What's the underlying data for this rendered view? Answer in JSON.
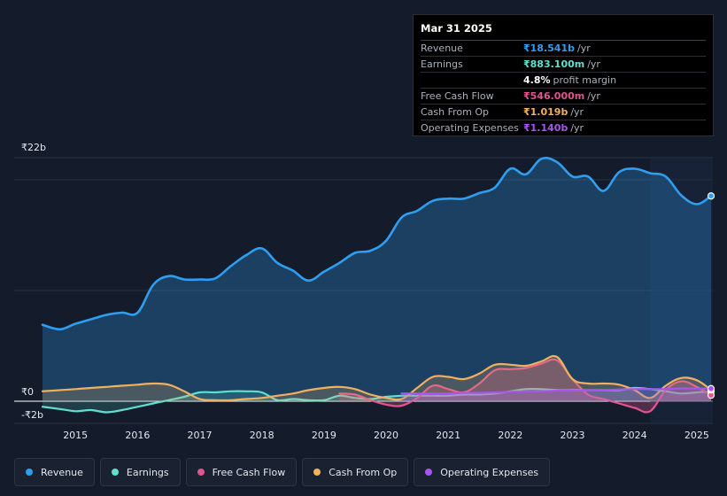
{
  "chart_data": {
    "type": "area",
    "title": "",
    "xlabel": "",
    "ylabel": "",
    "y_unit": "₹ billions",
    "ylim": [
      -2,
      22
    ],
    "y_tick_labels": [
      {
        "value": 22,
        "label": "₹22b"
      },
      {
        "value": 0,
        "label": "₹0"
      },
      {
        "value": -2,
        "label": "-₹2b"
      }
    ],
    "x_ticks": [
      2015,
      2016,
      2017,
      2018,
      2019,
      2020,
      2021,
      2022,
      2023,
      2024,
      2025
    ],
    "x_range": [
      2014.47,
      2025.23
    ],
    "forecast_start": 2024.25,
    "series": [
      {
        "name": "Revenue",
        "color": "#2f9ef0",
        "x": [
          2014.47,
          2014.75,
          2015.0,
          2015.25,
          2015.5,
          2015.75,
          2016.0,
          2016.25,
          2016.5,
          2016.75,
          2017.0,
          2017.25,
          2017.5,
          2017.75,
          2018.0,
          2018.25,
          2018.5,
          2018.75,
          2019.0,
          2019.25,
          2019.5,
          2019.75,
          2020.0,
          2020.25,
          2020.5,
          2020.75,
          2021.0,
          2021.25,
          2021.5,
          2021.75,
          2022.0,
          2022.25,
          2022.5,
          2022.75,
          2023.0,
          2023.25,
          2023.5,
          2023.75,
          2024.0,
          2024.25,
          2024.5,
          2024.75,
          2025.0,
          2025.23
        ],
        "values": [
          6.9,
          6.5,
          7.0,
          7.4,
          7.8,
          8.0,
          8.0,
          10.5,
          11.3,
          11.0,
          11.0,
          11.1,
          12.2,
          13.2,
          13.8,
          12.5,
          11.8,
          10.9,
          11.7,
          12.5,
          13.4,
          13.6,
          14.5,
          16.6,
          17.2,
          18.1,
          18.3,
          18.3,
          18.8,
          19.3,
          21.0,
          20.5,
          21.9,
          21.6,
          20.3,
          20.3,
          19.0,
          20.7,
          21.0,
          20.6,
          20.3,
          18.6,
          17.8,
          18.541
        ]
      },
      {
        "name": "Earnings",
        "color": "#5fe0cf",
        "x": [
          2014.47,
          2014.75,
          2015.0,
          2015.25,
          2015.5,
          2015.75,
          2016.0,
          2016.25,
          2016.5,
          2016.75,
          2017.0,
          2017.25,
          2017.5,
          2017.75,
          2018.0,
          2018.25,
          2018.5,
          2018.75,
          2019.0,
          2019.25,
          2019.5,
          2019.75,
          2020.0,
          2020.25,
          2020.5,
          2020.75,
          2021.0,
          2021.25,
          2021.5,
          2021.75,
          2022.0,
          2022.25,
          2022.5,
          2022.75,
          2023.0,
          2023.25,
          2023.5,
          2023.75,
          2024.0,
          2024.25,
          2024.5,
          2024.75,
          2025.0,
          2025.23
        ],
        "values": [
          -0.5,
          -0.7,
          -0.9,
          -0.8,
          -1.0,
          -0.8,
          -0.5,
          -0.2,
          0.1,
          0.4,
          0.8,
          0.8,
          0.9,
          0.9,
          0.8,
          0.1,
          0.2,
          0.1,
          0.1,
          0.5,
          0.3,
          0.2,
          0.4,
          0.5,
          0.5,
          0.5,
          0.5,
          0.6,
          0.6,
          0.7,
          0.9,
          1.1,
          1.1,
          1.0,
          1.0,
          1.0,
          1.0,
          1.0,
          1.2,
          1.1,
          0.9,
          0.7,
          0.8,
          0.883
        ]
      },
      {
        "name": "Free Cash Flow",
        "color": "#e05590",
        "x": [
          2019.25,
          2019.5,
          2019.75,
          2020.0,
          2020.25,
          2020.5,
          2020.75,
          2021.0,
          2021.25,
          2021.5,
          2021.75,
          2022.0,
          2022.25,
          2022.5,
          2022.75,
          2023.0,
          2023.25,
          2023.5,
          2023.75,
          2024.0,
          2024.25,
          2024.5,
          2024.75,
          2025.0,
          2025.23
        ],
        "values": [
          0.7,
          0.6,
          0.1,
          -0.3,
          -0.4,
          0.3,
          1.4,
          1.1,
          0.8,
          1.6,
          2.8,
          2.9,
          3.0,
          3.4,
          3.7,
          2.0,
          0.6,
          0.2,
          -0.2,
          -0.6,
          -0.9,
          1.0,
          1.8,
          1.3,
          0.546
        ]
      },
      {
        "name": "Cash From Op",
        "color": "#f0b060",
        "x": [
          2014.47,
          2014.75,
          2015.0,
          2015.25,
          2015.5,
          2015.75,
          2016.0,
          2016.25,
          2016.5,
          2016.75,
          2017.0,
          2017.25,
          2017.5,
          2017.75,
          2018.0,
          2018.25,
          2018.5,
          2018.75,
          2019.0,
          2019.25,
          2019.5,
          2019.75,
          2020.0,
          2020.25,
          2020.5,
          2020.75,
          2021.0,
          2021.25,
          2021.5,
          2021.75,
          2022.0,
          2022.25,
          2022.5,
          2022.75,
          2023.0,
          2023.25,
          2023.5,
          2023.75,
          2024.0,
          2024.25,
          2024.5,
          2024.75,
          2025.0,
          2025.23
        ],
        "values": [
          0.9,
          1.0,
          1.1,
          1.2,
          1.3,
          1.4,
          1.5,
          1.6,
          1.5,
          0.9,
          0.2,
          0.1,
          0.1,
          0.2,
          0.3,
          0.5,
          0.7,
          1.0,
          1.2,
          1.3,
          1.1,
          0.6,
          0.3,
          0.2,
          1.2,
          2.2,
          2.2,
          2.0,
          2.5,
          3.3,
          3.3,
          3.2,
          3.6,
          4.0,
          2.0,
          1.6,
          1.6,
          1.5,
          1.0,
          0.3,
          1.4,
          2.1,
          1.9,
          1.019
        ]
      },
      {
        "name": "Operating Expenses",
        "color": "#a855f0",
        "x": [
          2020.25,
          2020.5,
          2020.75,
          2021.0,
          2021.25,
          2021.5,
          2021.75,
          2022.0,
          2022.25,
          2022.5,
          2022.75,
          2023.0,
          2023.25,
          2023.5,
          2023.75,
          2024.0,
          2024.25,
          2024.5,
          2024.75,
          2025.0,
          2025.23
        ],
        "values": [
          0.7,
          0.7,
          0.7,
          0.7,
          0.75,
          0.75,
          0.8,
          0.85,
          0.9,
          0.9,
          0.95,
          0.95,
          1.0,
          1.0,
          1.05,
          1.1,
          1.1,
          1.1,
          1.15,
          1.15,
          1.14
        ]
      }
    ]
  },
  "tooltip": {
    "date": "Mar 31 2025",
    "rows": [
      {
        "label": "Revenue",
        "value": "₹18.541b",
        "unit": "/yr",
        "color": "#2f9ef0"
      },
      {
        "label": "Earnings",
        "value": "₹883.100m",
        "unit": "/yr",
        "color": "#5fe0cf"
      },
      {
        "label": "",
        "value": "4.8%",
        "unit": "profit margin",
        "color": "#ffffff"
      },
      {
        "label": "Free Cash Flow",
        "value": "₹546.000m",
        "unit": "/yr",
        "color": "#e05590"
      },
      {
        "label": "Cash From Op",
        "value": "₹1.019b",
        "unit": "/yr",
        "color": "#f0b060"
      },
      {
        "label": "Operating Expenses",
        "value": "₹1.140b",
        "unit": "/yr",
        "color": "#a855f0"
      }
    ]
  },
  "legend": [
    {
      "label": "Revenue",
      "color": "#2f9ef0"
    },
    {
      "label": "Earnings",
      "color": "#5fe0cf"
    },
    {
      "label": "Free Cash Flow",
      "color": "#e05590"
    },
    {
      "label": "Cash From Op",
      "color": "#f0b060"
    },
    {
      "label": "Operating Expenses",
      "color": "#a855f0"
    }
  ]
}
